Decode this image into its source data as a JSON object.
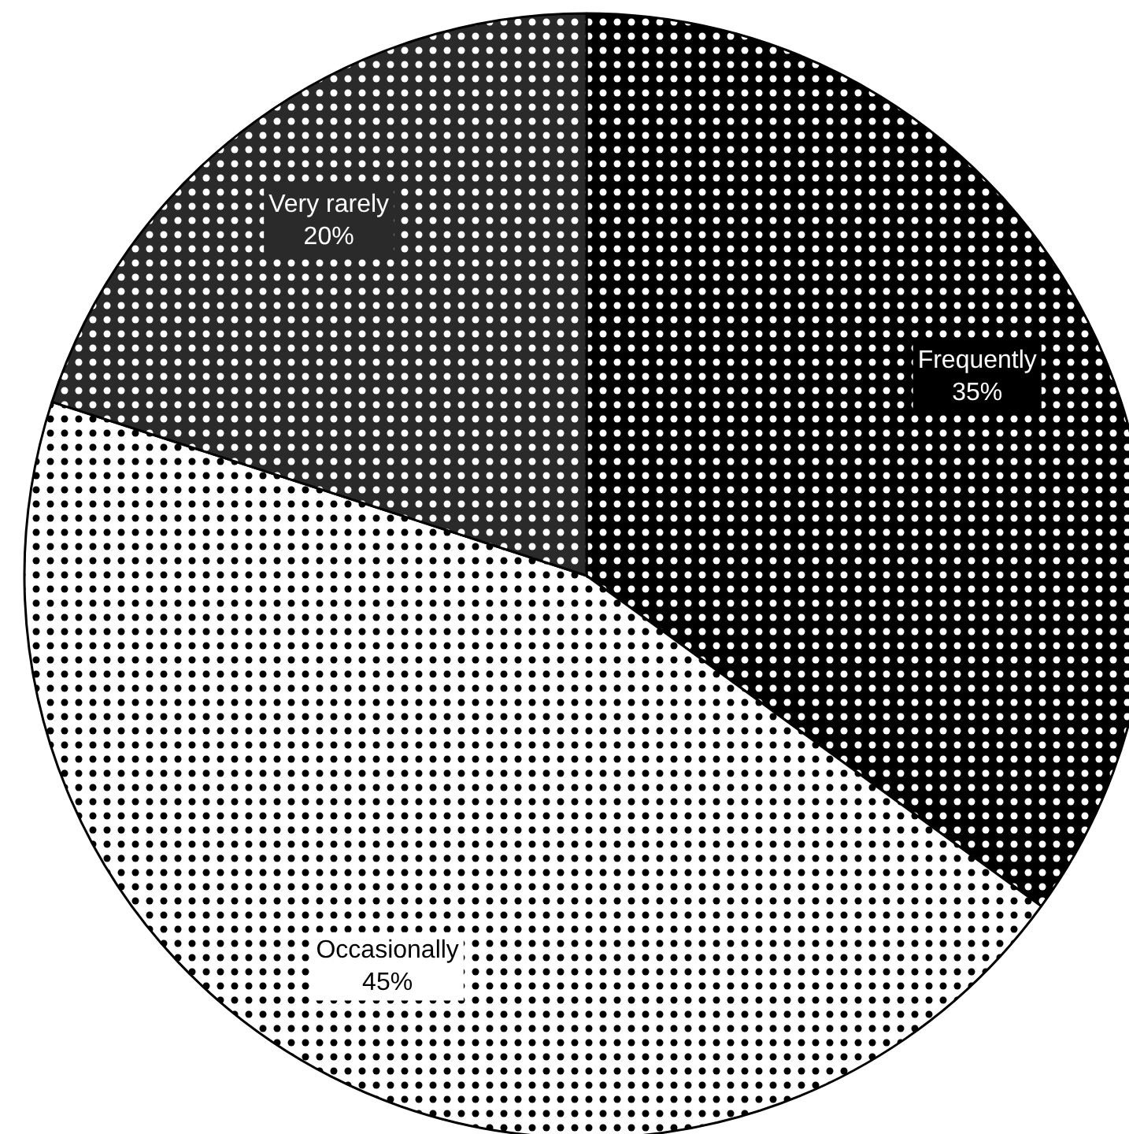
{
  "chart_data": {
    "type": "pie",
    "categories": [
      "Frequently",
      "Occasionally",
      "Very rarely"
    ],
    "values": [
      35,
      45,
      20
    ],
    "colors": [
      "#000000",
      "#ffffff",
      "#2a2a2a"
    ],
    "value_labels": [
      "35%",
      "45%",
      "20%"
    ]
  }
}
